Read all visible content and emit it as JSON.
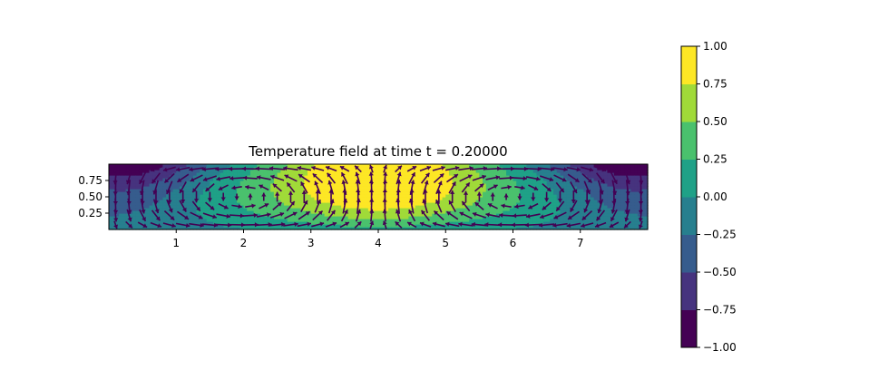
{
  "chart_data": {
    "type": "heatmap",
    "subtype": "filled-contour with quiver overlay",
    "title": "Temperature field at time t = 0.20000",
    "xlabel": "",
    "ylabel": "",
    "xlim": [
      0,
      8
    ],
    "ylim": [
      0,
      1
    ],
    "x_ticks": [
      1,
      2,
      3,
      4,
      5,
      6,
      7
    ],
    "x_tick_labels": [
      "1",
      "2",
      "3",
      "4",
      "5",
      "6",
      "7"
    ],
    "y_ticks": [
      0.25,
      0.5,
      0.75
    ],
    "y_tick_labels": [
      "0.25",
      "0.50",
      "0.75"
    ],
    "field": {
      "description": "T(x,y) = -cos(pi*x/4)*cos(pi*y)*0.4 + 0.2*... approx: hot plume centered at x=4 near top, cold corners at top left/right",
      "levels": [
        -1.0,
        -0.75,
        -0.5,
        -0.25,
        0.0,
        0.25,
        0.5,
        0.75,
        1.0
      ],
      "level_colors": [
        "#440154",
        "#46337e",
        "#365c8d",
        "#277f8e",
        "#1fa187",
        "#4ac16d",
        "#a0da39",
        "#fde725"
      ]
    },
    "quiver": {
      "color": "#440154",
      "nx": 40,
      "ny": 7,
      "pattern": "two counter-rotating convection cells: flow toward x=4 along top at center, outward along bottom; recirculation vortices near x=1 and x=7"
    },
    "colorbar": {
      "ticks": [
        1.0,
        0.75,
        0.5,
        0.25,
        0.0,
        -0.25,
        -0.5,
        -0.75,
        -1.0
      ],
      "tick_labels": [
        "1.00",
        "0.75",
        "0.50",
        "0.25",
        "0.00",
        "−0.25",
        "−0.50",
        "−0.75",
        "−1.00"
      ],
      "range": [
        -1.0,
        1.0
      ]
    },
    "grid": false,
    "legend": "none"
  }
}
